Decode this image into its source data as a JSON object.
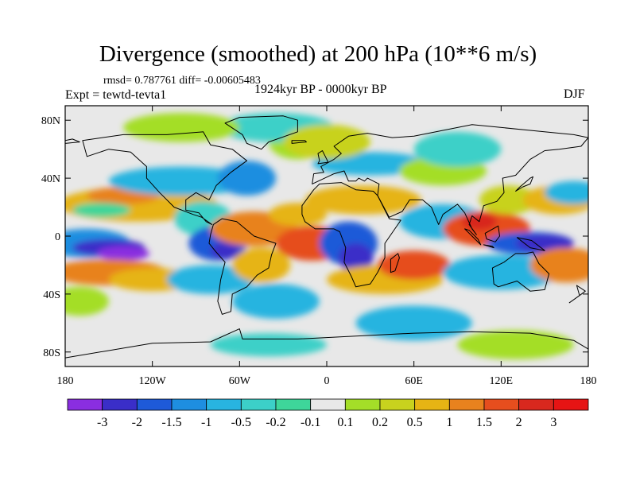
{
  "chart_data": {
    "type": "heatmap",
    "title": "Divergence (smoothed) at 200 hPa (10**6 m/s)",
    "stats": "rmsd= 0.787761 diff= -0.00605483",
    "experiment": "Expt = tewtd-tevta1",
    "period": "1924kyr BP - 0000kyr BP",
    "season": "DJF",
    "x_ticks": [
      "180",
      "120W",
      "60W",
      "0",
      "60E",
      "120E",
      "180"
    ],
    "y_ticks": [
      "80N",
      "40N",
      "0",
      "40S",
      "80S"
    ],
    "xlim": [
      -180,
      180
    ],
    "ylim": [
      -90,
      90
    ],
    "colorbar_levels": [
      "-3",
      "-2",
      "-1.5",
      "-1",
      "-0.5",
      "-0.2",
      "-0.1",
      "0.1",
      "0.2",
      "0.5",
      "1",
      "1.5",
      "2",
      "3"
    ],
    "colorbar_colors": [
      "#8a2ee0",
      "#3a2ec8",
      "#1e5ad8",
      "#1e8ee0",
      "#28b4e0",
      "#3cd0c8",
      "#3ed69a",
      "#e8e8e8",
      "#a4de28",
      "#c8d21e",
      "#e6b414",
      "#e8821e",
      "#e64e1e",
      "#d8281e",
      "#e61414"
    ]
  }
}
